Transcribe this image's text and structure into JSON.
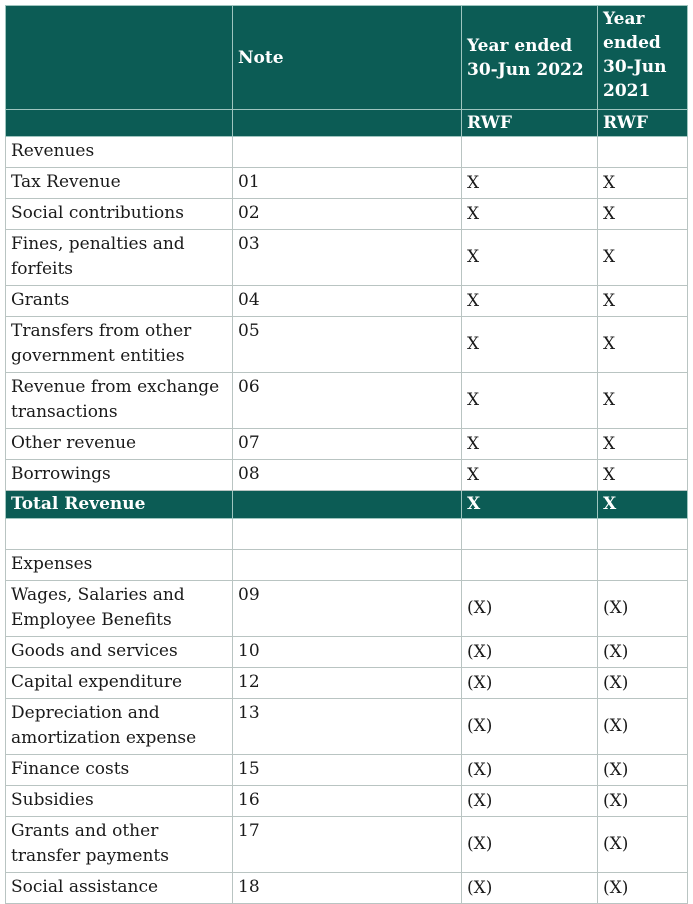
{
  "header": {
    "note_label": "Note",
    "col_2022": "Year ended 30-Jun 2022",
    "col_2021": "Year ended 30-Jun 2021",
    "currency_2022": "RWF",
    "currency_2021": "RWF"
  },
  "revenues": {
    "section_label": "Revenues",
    "rows": [
      {
        "label": "Tax Revenue",
        "note": "01",
        "y2022": "X",
        "y2021": "X"
      },
      {
        "label": "Social contributions",
        "note": "02",
        "y2022": "X",
        "y2021": "X"
      },
      {
        "label": "Fines, penalties and forfeits",
        "note": "03",
        "y2022": "X",
        "y2021": "X"
      },
      {
        "label": "Grants",
        "note": "04",
        "y2022": "X",
        "y2021": "X"
      },
      {
        "label": "Transfers from other government entities",
        "note": "05",
        "y2022": "X",
        "y2021": "X"
      },
      {
        "label": "Revenue from exchange transactions",
        "note": "06",
        "y2022": "X",
        "y2021": "X"
      },
      {
        "label": "Other revenue",
        "note": "07",
        "y2022": "X",
        "y2021": "X"
      },
      {
        "label": "Borrowings",
        "note": "08",
        "y2022": "X",
        "y2021": "X"
      }
    ],
    "total": {
      "label": "Total Revenue",
      "y2022": "X",
      "y2021": "X"
    }
  },
  "expenses": {
    "section_label": "Expenses",
    "rows": [
      {
        "label": "Wages, Salaries and Employee Benefits",
        "note": "09",
        "y2022": "(X)",
        "y2021": "(X)"
      },
      {
        "label": "Goods and services",
        "note": "10",
        "y2022": "(X)",
        "y2021": "(X)"
      },
      {
        "label": "Capital expenditure",
        "note": "12",
        "y2022": "(X)",
        "y2021": "(X)"
      },
      {
        "label": "Depreciation and amortization expense",
        "note": "13",
        "y2022": "(X)",
        "y2021": "(X)"
      },
      {
        "label": "Finance costs",
        "note": "15",
        "y2022": "(X)",
        "y2021": "(X)"
      },
      {
        "label": "Subsidies",
        "note": "16",
        "y2022": "(X)",
        "y2021": "(X)"
      },
      {
        "label": "Grants and other transfer payments",
        "note": "17",
        "y2022": "(X)",
        "y2021": "(X)"
      },
      {
        "label": "Social assistance",
        "note": "18",
        "y2022": "(X)",
        "y2021": "(X)"
      }
    ]
  }
}
